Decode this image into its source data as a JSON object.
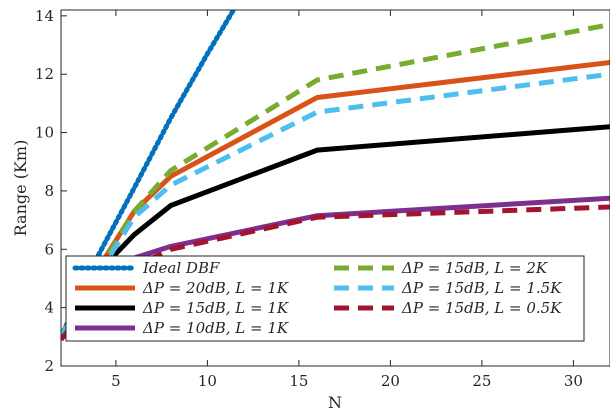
{
  "chart_data": {
    "type": "line",
    "xlabel": "N",
    "ylabel": "Range (Km)",
    "xlim": [
      2,
      32
    ],
    "ylim": [
      2,
      14.2
    ],
    "xticks": [
      5,
      10,
      15,
      20,
      25,
      30
    ],
    "yticks": [
      2,
      4,
      6,
      8,
      10,
      12,
      14
    ],
    "grid": false,
    "legend_position": "bottom-center",
    "series": [
      {
        "name": "Ideal DBF",
        "color": "#0072BD",
        "style": "dotted",
        "x": [
          2,
          4,
          6,
          8,
          10,
          12
        ],
        "y": [
          3.0,
          5.75,
          8.1,
          10.5,
          12.7,
          14.8
        ]
      },
      {
        "name": "ΔP = 20dB, L = 1K",
        "color": "#D95319",
        "style": "solid",
        "x": [
          2,
          4,
          6,
          8,
          16,
          32
        ],
        "y": [
          3.0,
          5.3,
          7.3,
          8.5,
          11.2,
          12.4
        ]
      },
      {
        "name": "ΔP = 15dB, L = 1K",
        "color": "#000000",
        "style": "solid",
        "x": [
          2,
          4,
          6,
          8,
          16,
          32
        ],
        "y": [
          3.0,
          5.2,
          6.5,
          7.5,
          9.4,
          10.2
        ]
      },
      {
        "name": "ΔP = 10dB, L = 1K",
        "color": "#7E2F8E",
        "style": "solid",
        "x": [
          2,
          4,
          6,
          8,
          16,
          32
        ],
        "y": [
          3.0,
          4.8,
          5.7,
          6.1,
          7.15,
          7.75
        ]
      },
      {
        "name": "ΔP = 15dB, L = 2K",
        "color": "#77AC30",
        "style": "dashed",
        "x": [
          2,
          4,
          6,
          8,
          16,
          32
        ],
        "y": [
          3.0,
          5.2,
          7.3,
          8.7,
          11.8,
          13.7
        ]
      },
      {
        "name": "ΔP = 15dB, L = 1.5K",
        "color": "#4DBEEE",
        "style": "dashed",
        "x": [
          2,
          4,
          6,
          8,
          16,
          32
        ],
        "y": [
          3.0,
          5.1,
          7.1,
          8.2,
          10.7,
          12.0
        ]
      },
      {
        "name": "ΔP = 15dB, L = 0.5K",
        "color": "#A2142F",
        "style": "dashed",
        "x": [
          2,
          4,
          6,
          8,
          16,
          32
        ],
        "y": [
          2.9,
          4.5,
          5.4,
          6.0,
          7.1,
          7.45
        ]
      }
    ]
  }
}
